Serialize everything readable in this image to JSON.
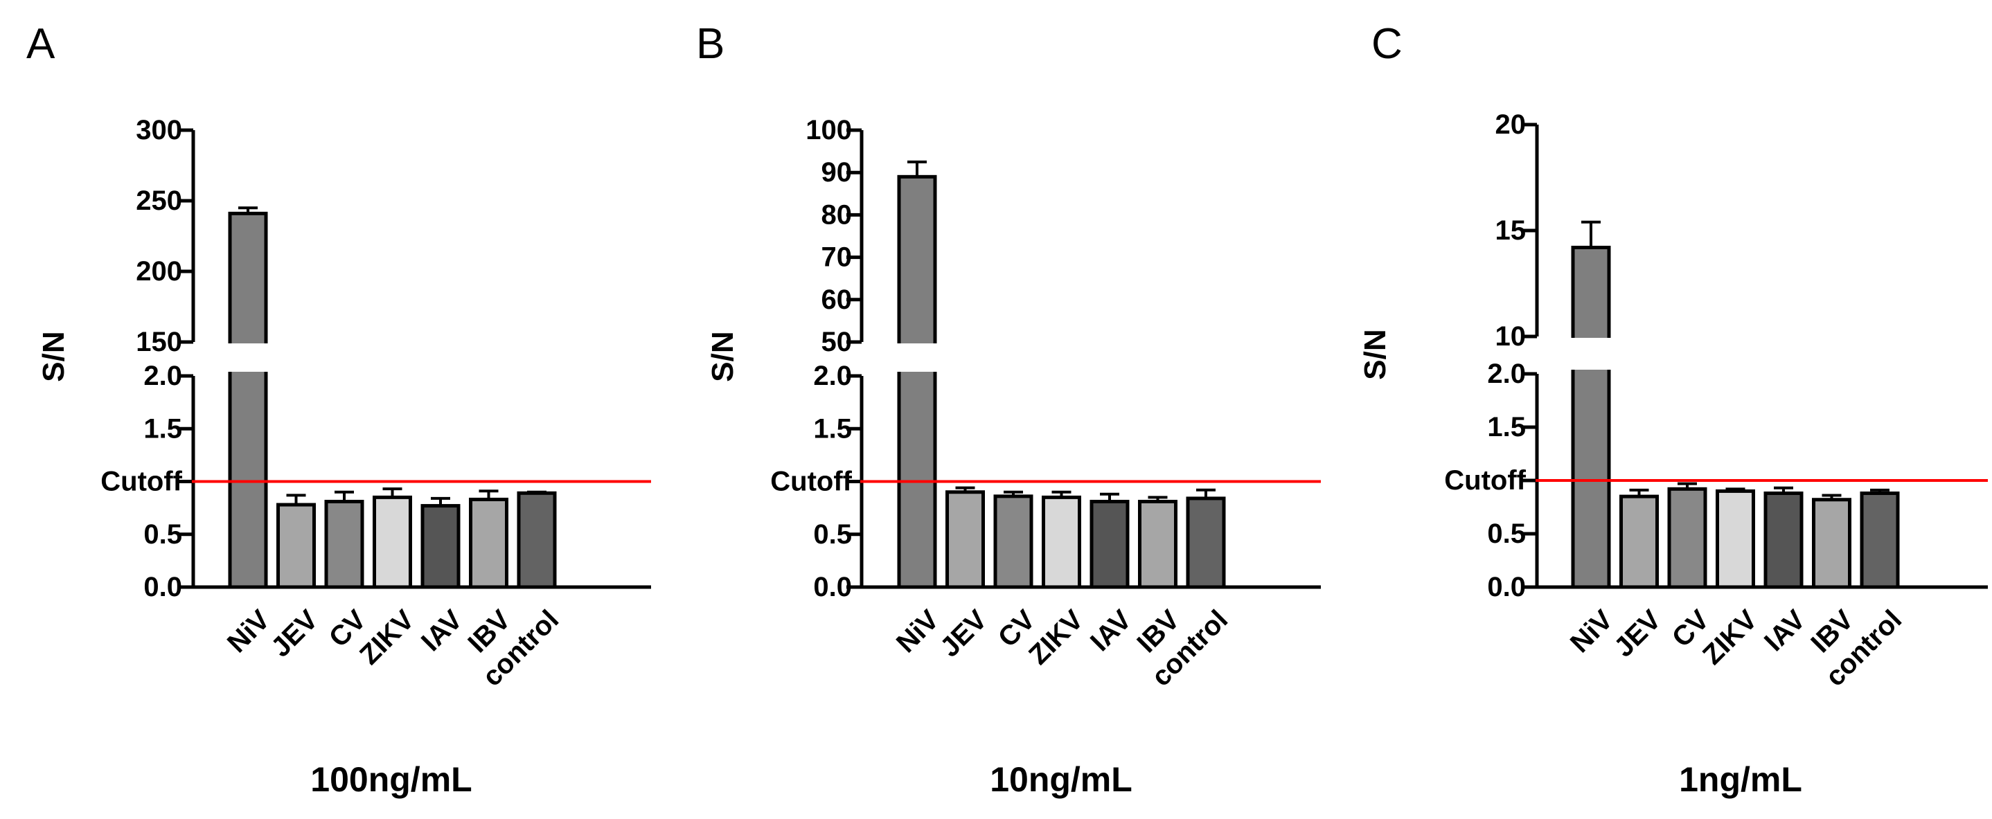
{
  "chart_data": [
    {
      "panel": "A",
      "type": "bar",
      "title": "",
      "xlabel": "100ng/mL",
      "ylabel": "S/N",
      "categories": [
        "NiV",
        "JEV",
        "CV",
        "ZIKV",
        "IAV",
        "IBV",
        "control"
      ],
      "values": [
        241,
        0.78,
        0.81,
        0.85,
        0.77,
        0.83,
        0.89
      ],
      "errors": [
        4,
        0.09,
        0.09,
        0.08,
        0.07,
        0.08,
        0.01
      ],
      "colors": [
        "#7f7f7f",
        "#a6a6a6",
        "#888888",
        "#d8d8d8",
        "#555555",
        "#a6a6a6",
        "#636363"
      ],
      "y_broken": true,
      "lower_segment": {
        "ylim": [
          0,
          2.0
        ],
        "ticks": [
          "0.0",
          "0.5",
          "",
          "1.5",
          "2.0"
        ],
        "tick_values": [
          0,
          0.5,
          1.0,
          1.5,
          2.0
        ]
      },
      "upper_segment": {
        "ylim": [
          150,
          300
        ],
        "ticks": [
          "150",
          "200",
          "250",
          "300"
        ],
        "tick_values": [
          150,
          200,
          250,
          300
        ]
      },
      "cutoff": {
        "label": "Cutoff",
        "value": 1.0,
        "color": "#ff0000"
      }
    },
    {
      "panel": "B",
      "type": "bar",
      "title": "",
      "xlabel": "10ng/mL",
      "ylabel": "S/N",
      "categories": [
        "NiV",
        "JEV",
        "CV",
        "ZIKV",
        "IAV",
        "IBV",
        "control"
      ],
      "values": [
        89,
        0.9,
        0.86,
        0.85,
        0.81,
        0.81,
        0.84
      ],
      "errors": [
        3.5,
        0.04,
        0.04,
        0.05,
        0.07,
        0.04,
        0.08
      ],
      "colors": [
        "#7f7f7f",
        "#a6a6a6",
        "#888888",
        "#d8d8d8",
        "#555555",
        "#a6a6a6",
        "#636363"
      ],
      "y_broken": true,
      "lower_segment": {
        "ylim": [
          0,
          2.0
        ],
        "ticks": [
          "0.0",
          "0.5",
          "",
          "1.5",
          "2.0"
        ],
        "tick_values": [
          0,
          0.5,
          1.0,
          1.5,
          2.0
        ]
      },
      "upper_segment": {
        "ylim": [
          50,
          100
        ],
        "ticks": [
          "50",
          "60",
          "70",
          "80",
          "90",
          "100"
        ],
        "tick_values": [
          50,
          60,
          70,
          80,
          90,
          100
        ]
      },
      "cutoff": {
        "label": "Cutoff",
        "value": 1.0,
        "color": "#ff0000"
      }
    },
    {
      "panel": "C",
      "type": "bar",
      "title": "",
      "xlabel": "1ng/mL",
      "ylabel": "S/N",
      "categories": [
        "NiV",
        "JEV",
        "CV",
        "ZIKV",
        "IAV",
        "IBV",
        "control"
      ],
      "values": [
        14.2,
        0.85,
        0.92,
        0.9,
        0.88,
        0.82,
        0.88
      ],
      "errors": [
        1.2,
        0.06,
        0.05,
        0.02,
        0.05,
        0.04,
        0.03
      ],
      "colors": [
        "#7f7f7f",
        "#a6a6a6",
        "#888888",
        "#d8d8d8",
        "#555555",
        "#a6a6a6",
        "#636363"
      ],
      "y_broken": true,
      "lower_segment": {
        "ylim": [
          0,
          2.0
        ],
        "ticks": [
          "0.0",
          "0.5",
          "",
          "1.5",
          "2.0"
        ],
        "tick_values": [
          0,
          0.5,
          1.0,
          1.5,
          2.0
        ]
      },
      "upper_segment": {
        "ylim": [
          10,
          20
        ],
        "ticks": [
          "10",
          "15",
          "20"
        ],
        "tick_values": [
          10,
          15,
          20
        ]
      },
      "cutoff": {
        "label": "Cutoff",
        "value": 1.0,
        "color": "#ff0000"
      }
    }
  ]
}
